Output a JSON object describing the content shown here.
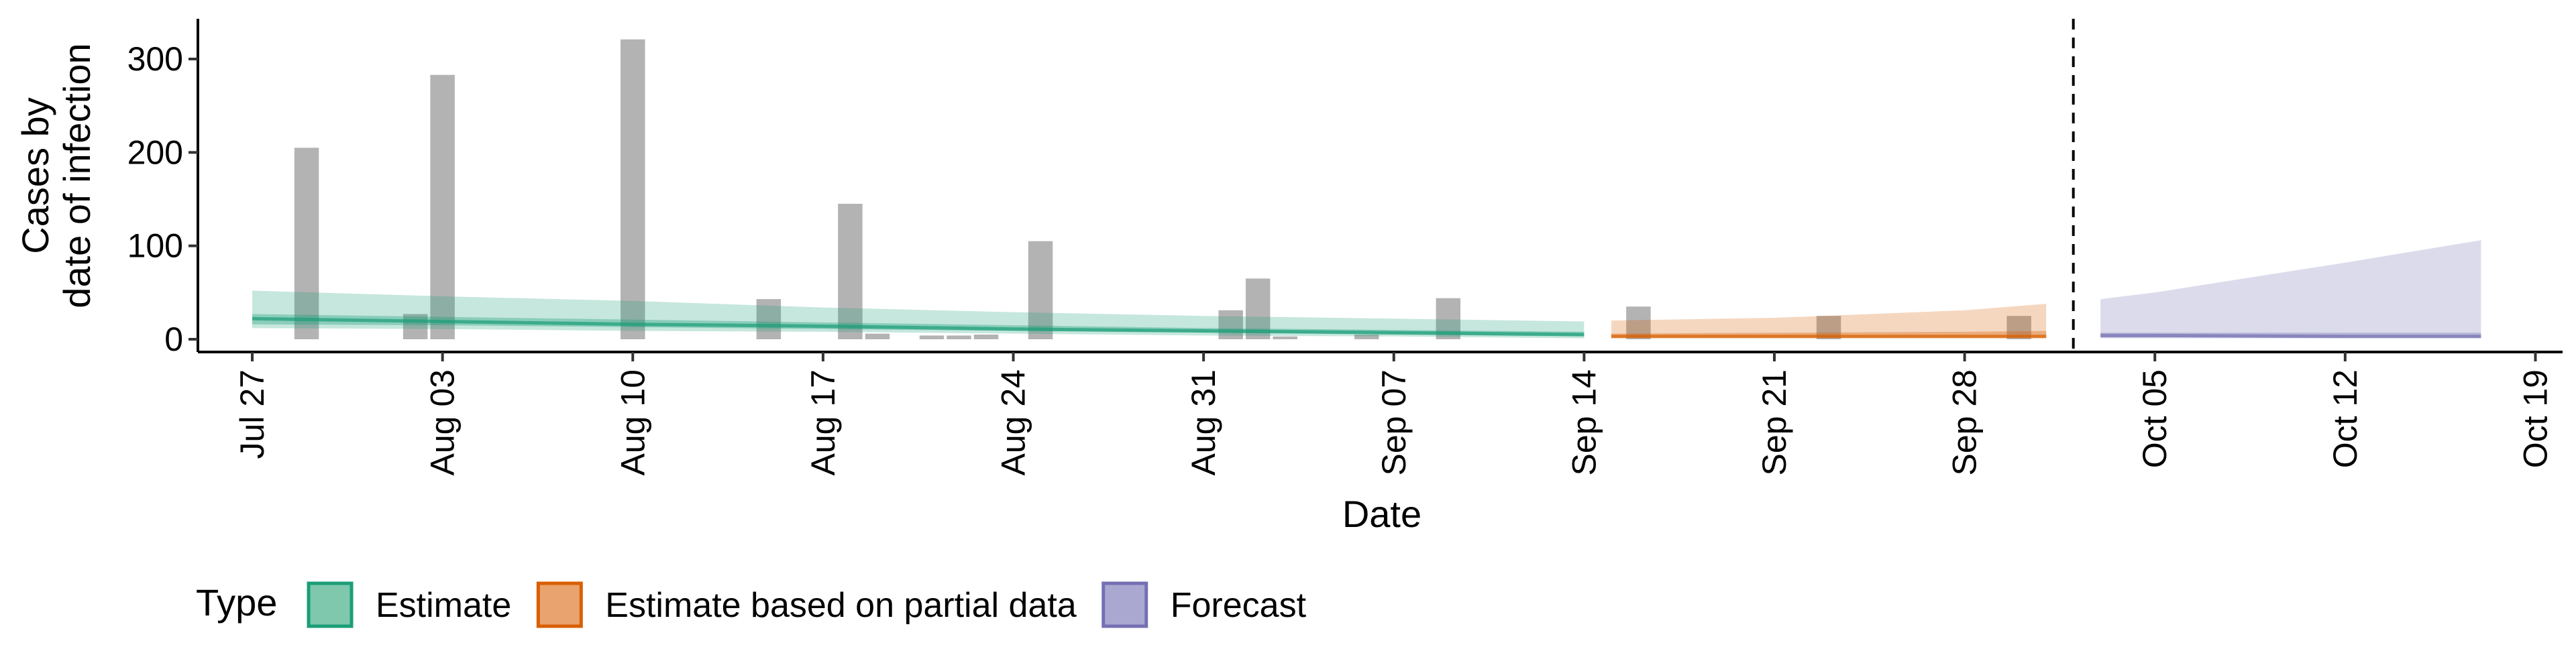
{
  "chart_data": {
    "type": "bar+area",
    "xlabel": "Date",
    "ylabel": [
      "Cases by",
      "date of infection"
    ],
    "ylim": [
      0,
      340
    ],
    "y_ticks": [
      0,
      100,
      200,
      300
    ],
    "x_tick_labels": [
      "Jul 27",
      "Aug 03",
      "Aug 10",
      "Aug 17",
      "Aug 24",
      "Aug 31",
      "Sep 07",
      "Sep 14",
      "Sep 21",
      "Sep 28",
      "Oct 05",
      "Oct 12",
      "Oct 19"
    ],
    "x_domain": [
      "2020-07-25",
      "2020-10-20"
    ],
    "forecast_start": "2020-10-02",
    "grid": false,
    "legend": {
      "title": "Type",
      "position": "bottom-left",
      "entries": [
        {
          "label": "Estimate",
          "fill": "#7fc7ad",
          "stroke": "#1b9e77"
        },
        {
          "label": "Estimate based on partial data",
          "fill": "#e9a36e",
          "stroke": "#d95f02"
        },
        {
          "label": "Forecast",
          "fill": "#aaa8d0",
          "stroke": "#7570b3"
        }
      ]
    },
    "colors": {
      "bars": "#b3b3b3",
      "estimate": "#1b9e77",
      "partial": "#d95f02",
      "forecast": "#7570b3",
      "vline": "#000000"
    },
    "reported_cases": {
      "dates": [
        "2020-07-29",
        "2020-08-02",
        "2020-08-03",
        "2020-08-10",
        "2020-08-15",
        "2020-08-18",
        "2020-08-19",
        "2020-08-21",
        "2020-08-22",
        "2020-08-23",
        "2020-08-25",
        "2020-09-01",
        "2020-09-02",
        "2020-09-03",
        "2020-09-06",
        "2020-09-09",
        "2020-09-16",
        "2020-09-23",
        "2020-09-30"
      ],
      "values": [
        205,
        27,
        283,
        321,
        43,
        145,
        6,
        4,
        4,
        5,
        105,
        31,
        65,
        3,
        5,
        44,
        35,
        25,
        25
      ]
    },
    "series": [
      {
        "type": "Estimate",
        "x": [
          "2020-07-27",
          "2020-08-03",
          "2020-08-10",
          "2020-08-17",
          "2020-08-24",
          "2020-08-31",
          "2020-09-07",
          "2020-09-14"
        ],
        "median": [
          22,
          19,
          16,
          14,
          11,
          9,
          7,
          5
        ],
        "lower_50": [
          16,
          15,
          13,
          11,
          9,
          7,
          5,
          3
        ],
        "upper_50": [
          27,
          24,
          21,
          18,
          15,
          12,
          10,
          8
        ],
        "lower_90": [
          12,
          11,
          9,
          8,
          6,
          4,
          3,
          1
        ],
        "upper_90": [
          52,
          46,
          41,
          34,
          29,
          25,
          22,
          19
        ]
      },
      {
        "type": "Estimate based on partial data",
        "x": [
          "2020-09-15",
          "2020-09-21",
          "2020-09-28",
          "2020-10-01"
        ],
        "median": [
          3,
          3,
          3,
          3
        ],
        "lower_50": [
          2,
          2,
          2,
          2
        ],
        "upper_50": [
          6,
          7,
          8,
          9
        ],
        "lower_90": [
          1,
          1,
          1,
          1
        ],
        "upper_90": [
          20,
          23,
          31,
          38
        ]
      },
      {
        "type": "Forecast",
        "x": [
          "2020-10-03",
          "2020-10-05",
          "2020-10-12",
          "2020-10-17"
        ],
        "median": [
          4,
          4,
          3,
          3
        ],
        "lower_50": [
          2,
          2,
          2,
          2
        ],
        "upper_50": [
          7,
          7,
          7,
          7
        ],
        "lower_90": [
          1,
          1,
          1,
          1
        ],
        "upper_90": [
          43,
          50,
          82,
          106
        ]
      }
    ]
  }
}
